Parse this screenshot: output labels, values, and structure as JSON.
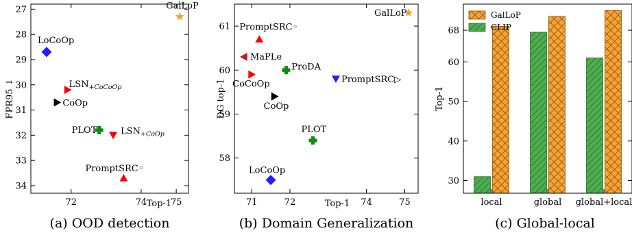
{
  "chart_data": [
    {
      "type": "scatter",
      "caption": "(a) OOD detection",
      "xlabel": "Top-1",
      "ylabel": "FPR95 ↓",
      "xlim": [
        70.85,
        75.35
      ],
      "ylim": [
        34.3,
        26.8
      ],
      "y_inverted": true,
      "xticks": [
        72,
        74,
        75
      ],
      "yticks": [
        27,
        28,
        29,
        30,
        31,
        32,
        33,
        34
      ],
      "grid": false,
      "points": [
        {
          "label": "GalLoP",
          "x": 75.1,
          "y": 27.3,
          "marker": "star",
          "color": "#f39c1f"
        },
        {
          "label": "LoCoOp",
          "x": 71.3,
          "y": 28.7,
          "marker": "diamond",
          "color": "#1f1fff"
        },
        {
          "label": "LSN",
          "label_sub": "+CoCoOp",
          "x": 71.9,
          "y": 30.2,
          "marker": "triangle-right",
          "color": "#ff0000"
        },
        {
          "label": "CoOp",
          "x": 71.6,
          "y": 30.7,
          "marker": "triangle-right",
          "color": "#000000"
        },
        {
          "label": "PLOT",
          "x": 72.8,
          "y": 31.8,
          "marker": "plus",
          "color": "#138a13"
        },
        {
          "label": "LSN",
          "label_sub": "+CoOp",
          "x": 73.2,
          "y": 32.0,
          "marker": "triangle-down",
          "color": "#ff0000"
        },
        {
          "label": "PromptSRC◦",
          "x": 73.5,
          "y": 33.7,
          "marker": "triangle-up",
          "color": "#ff0000"
        }
      ]
    },
    {
      "type": "scatter",
      "caption": "(b) Domain Generalization",
      "xlabel": "Top-1",
      "ylabel": "DG top-1",
      "xlim": [
        70.55,
        75.35
      ],
      "ylim": [
        57.2,
        61.5
      ],
      "xticks": [
        71,
        72,
        74,
        75
      ],
      "yticks": [
        58,
        59,
        60,
        61
      ],
      "grid": false,
      "points": [
        {
          "label": "GalLoP",
          "x": 75.1,
          "y": 61.3,
          "marker": "star",
          "color": "#f39c1f"
        },
        {
          "label": "PromptSRC◦",
          "x": 71.2,
          "y": 60.7,
          "marker": "triangle-up",
          "color": "#ff0000"
        },
        {
          "label": "MaPLe",
          "x": 70.8,
          "y": 60.3,
          "marker": "triangle-left",
          "color": "#b22222"
        },
        {
          "label": "CoCoOp",
          "x": 71.0,
          "y": 59.9,
          "marker": "triangle-right",
          "color": "#ff0000"
        },
        {
          "label": "ProDA",
          "x": 71.9,
          "y": 60.0,
          "marker": "plus",
          "color": "#138a13"
        },
        {
          "label": "PromptSRC▷",
          "x": 73.2,
          "y": 59.8,
          "marker": "triangle-down",
          "color": "#1f1fff"
        },
        {
          "label": "CoOp",
          "x": 71.6,
          "y": 59.4,
          "marker": "triangle-right",
          "color": "#000000"
        },
        {
          "label": "PLOT",
          "x": 72.6,
          "y": 58.4,
          "marker": "plus",
          "color": "#138a13"
        },
        {
          "label": "LoCoOp",
          "x": 71.5,
          "y": 57.5,
          "marker": "diamond",
          "color": "#1f1fff"
        }
      ]
    },
    {
      "type": "bar",
      "caption": "(c) Global-local",
      "xlabel": "",
      "ylabel": "Top-1",
      "ylim": [
        26.8,
        74.6
      ],
      "yticks": [
        30,
        40,
        50,
        60,
        68
      ],
      "categories": [
        "local",
        "global",
        "global+local"
      ],
      "legend_position": "top-left",
      "grid": false,
      "series": [
        {
          "name": "CLIP",
          "values": [
            31.0,
            67.5,
            61.0
          ],
          "color": "#4cae4c",
          "hatch": "diagonal"
        },
        {
          "name": "GalLoP",
          "values": [
            69.0,
            71.5,
            73.0
          ],
          "color": "#f7a233",
          "hatch": "crosshatch"
        }
      ]
    }
  ]
}
